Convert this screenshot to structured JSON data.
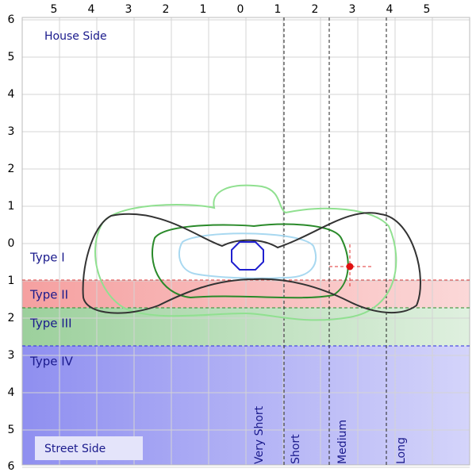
{
  "axis": {
    "top_labels": [
      "5",
      "4",
      "3",
      "2",
      "1",
      "0",
      "1",
      "2",
      "3",
      "4",
      "5"
    ],
    "left_labels": [
      "6",
      "5",
      "4",
      "3",
      "2",
      "1",
      "0",
      "1",
      "2",
      "3",
      "4",
      "5",
      "6"
    ]
  },
  "regions": {
    "house_side": "House Side",
    "street_side": "Street Side"
  },
  "types": [
    "Type I",
    "Type II",
    "Type III",
    "Type IV"
  ],
  "distances": [
    "Very Short",
    "Short",
    "Medium",
    "Long"
  ]
}
